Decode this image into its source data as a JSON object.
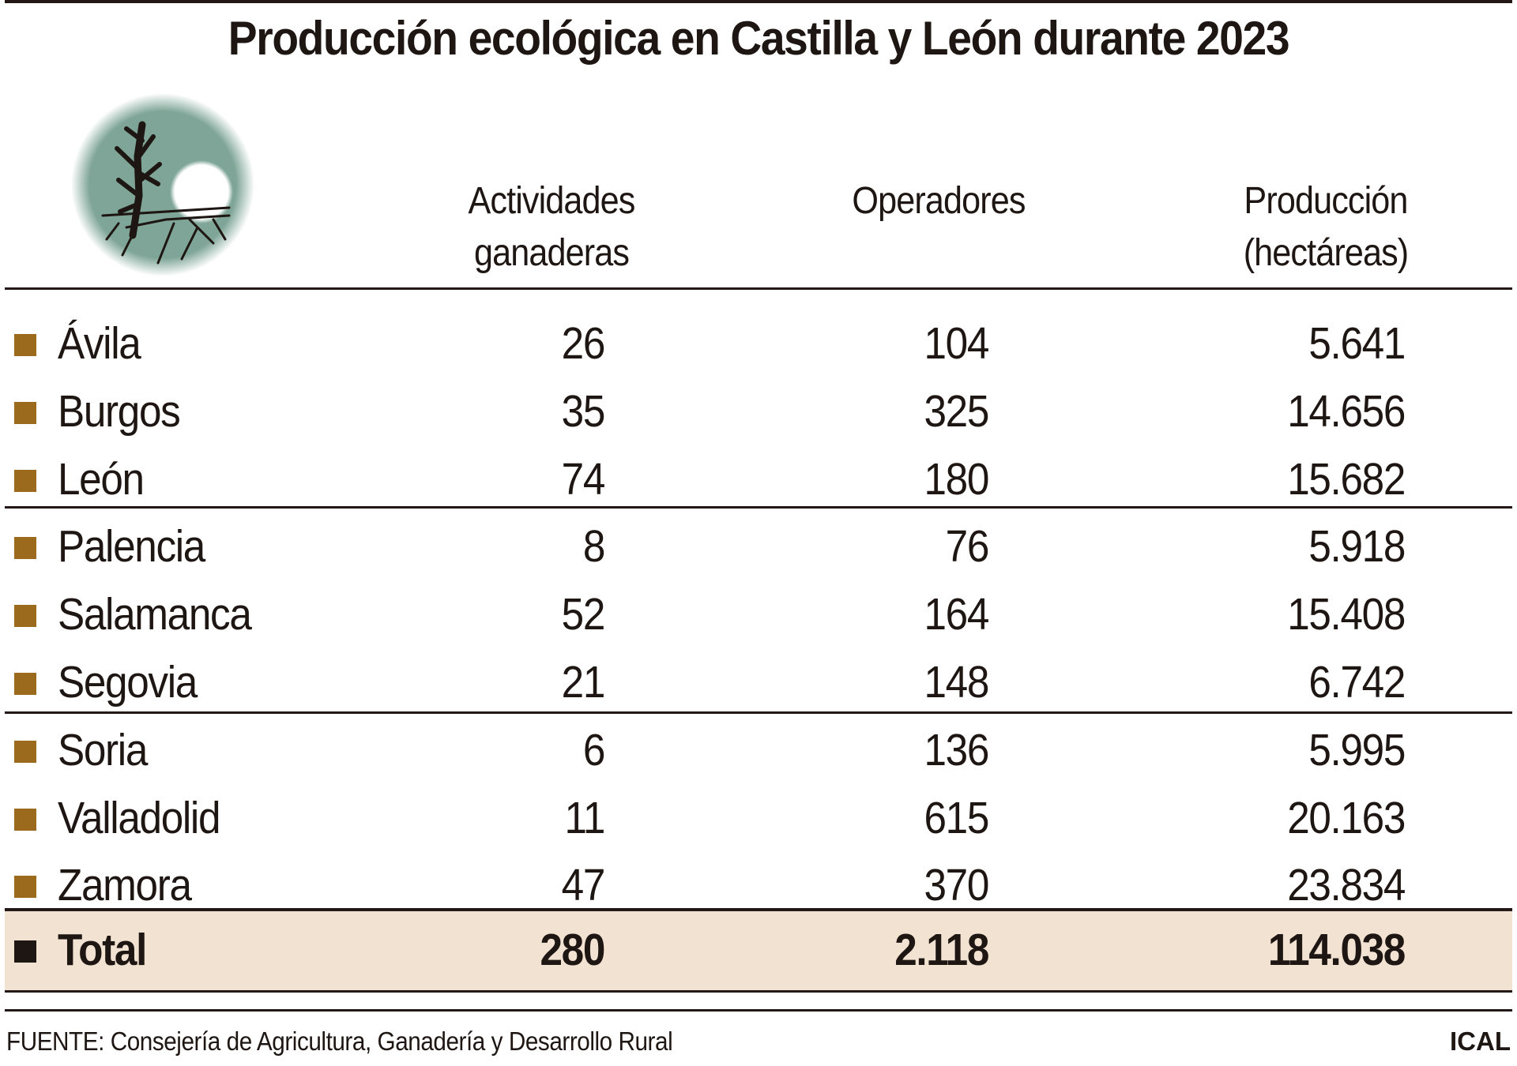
{
  "chart_data": {
    "type": "table",
    "title": "Producción ecológica en Castilla y León durante 2023",
    "columns": [
      "",
      "Actividades ganaderas",
      "Operadores",
      "Producción (hectáreas)"
    ],
    "header_lines": [
      [
        "Actividades",
        "ganaderas"
      ],
      [
        "Operadores",
        ""
      ],
      [
        "Producción",
        "(hectáreas)"
      ]
    ],
    "rows": [
      {
        "name": "Ávila",
        "values": [
          "26",
          "104",
          "5.641"
        ]
      },
      {
        "name": "Burgos",
        "values": [
          "35",
          "325",
          "14.656"
        ]
      },
      {
        "name": "León",
        "values": [
          "74",
          "180",
          "15.682"
        ]
      },
      {
        "name": "Palencia",
        "values": [
          "8",
          "76",
          "5.918"
        ]
      },
      {
        "name": "Salamanca",
        "values": [
          "52",
          "164",
          "15.408"
        ]
      },
      {
        "name": "Segovia",
        "values": [
          "21",
          "148",
          "6.742"
        ]
      },
      {
        "name": "Soria",
        "values": [
          "6",
          "136",
          "5.995"
        ]
      },
      {
        "name": "Valladolid",
        "values": [
          "11",
          "615",
          "20.163"
        ]
      },
      {
        "name": "Zamora",
        "values": [
          "47",
          "370",
          "23.834"
        ]
      }
    ],
    "total": {
      "name": "Total",
      "values": [
        "280",
        "2.118",
        "114.038"
      ]
    },
    "source": "FUENTE: Consejería de Agricultura, Ganadería y Desarrollo Rural",
    "credit": "ICAL",
    "colors": {
      "bullet": "#9b6a1c",
      "total_band": "#f2e2d1",
      "logo_circle": "#7ea597",
      "text": "#1e1613"
    }
  }
}
